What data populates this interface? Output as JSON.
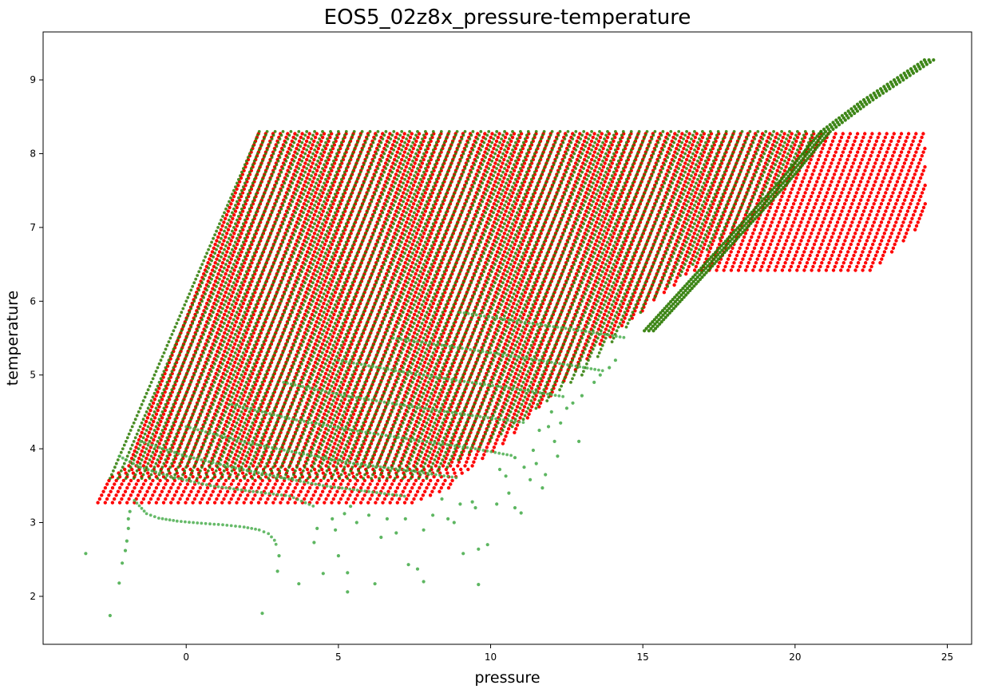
{
  "chart_data": {
    "type": "scatter",
    "title": "EOS5_02z8x_pressure-temperature",
    "xlabel": "pressure",
    "ylabel": "temperature",
    "xlim": [
      -4.7,
      25.8
    ],
    "ylim": [
      1.35,
      9.65
    ],
    "xticks": [
      0,
      5,
      10,
      15,
      20,
      25
    ],
    "yticks": [
      2,
      3,
      4,
      5,
      6,
      7,
      8,
      9
    ],
    "grid": false,
    "legend": "none",
    "series": [
      {
        "color": "#ff0000",
        "marker_size": 2.2,
        "grid_region": {
          "t_min": 3.27,
          "t_max": 8.3,
          "t_step": 0.05,
          "p_step": 0.24,
          "left_edge": [
            [
              3.27,
              -2.9
            ],
            [
              3.6,
              -2.5
            ],
            [
              3.75,
              -1.9
            ],
            [
              8.3,
              2.4
            ]
          ],
          "right_edge": [
            [
              3.27,
              7.6
            ],
            [
              3.42,
              8.5
            ],
            [
              3.75,
              9.4
            ],
            [
              4.05,
              10.4
            ],
            [
              5.4,
              13.6
            ],
            [
              6.4,
              16.6
            ],
            [
              6.4,
              22.5
            ],
            [
              7.1,
              24.3
            ],
            [
              8.3,
              24.3
            ]
          ]
        }
      },
      {
        "color": "#2a7a00",
        "marker_size": 1.9,
        "opacity": 0.85,
        "grid_region": {
          "t_min": 3.6,
          "t_max": 8.3,
          "t_step": 0.05,
          "p_step": 0.26,
          "left_edge": [
            [
              3.6,
              -2.5
            ],
            [
              8.3,
              2.4
            ]
          ],
          "right_edge": [
            [
              3.6,
              8.0
            ],
            [
              4.2,
              10.5
            ],
            [
              5.0,
              13.0
            ],
            [
              6.0,
              15.3
            ],
            [
              7.0,
              18.0
            ],
            [
              8.0,
              20.3
            ],
            [
              8.3,
              20.9
            ]
          ]
        },
        "diagonal_band": [
          [
            5.6,
            15.2
          ],
          [
            6.6,
            17.4
          ],
          [
            7.6,
            19.6
          ],
          [
            8.3,
            21.0
          ],
          [
            8.7,
            22.3
          ],
          [
            9.27,
            24.4
          ]
        ],
        "scattered": [
          [
            -3.3,
            2.58
          ],
          [
            -2.5,
            1.74
          ],
          [
            -2.2,
            2.18
          ],
          [
            -2.1,
            2.45
          ],
          [
            -2.0,
            2.62
          ],
          [
            -1.95,
            2.75
          ],
          [
            -1.9,
            2.92
          ],
          [
            -1.9,
            3.05
          ],
          [
            -1.85,
            3.15
          ],
          [
            2.5,
            1.77
          ],
          [
            3.0,
            2.34
          ],
          [
            3.05,
            2.55
          ],
          [
            3.7,
            2.17
          ],
          [
            4.2,
            2.73
          ],
          [
            4.3,
            2.92
          ],
          [
            4.5,
            2.31
          ],
          [
            4.8,
            3.05
          ],
          [
            4.9,
            2.9
          ],
          [
            5.0,
            2.55
          ],
          [
            5.2,
            3.12
          ],
          [
            5.3,
            2.32
          ],
          [
            5.3,
            2.06
          ],
          [
            5.4,
            3.22
          ],
          [
            5.6,
            3.0
          ],
          [
            6.0,
            3.1
          ],
          [
            6.2,
            2.17
          ],
          [
            6.4,
            2.8
          ],
          [
            6.6,
            3.05
          ],
          [
            6.9,
            2.86
          ],
          [
            7.2,
            3.05
          ],
          [
            7.3,
            2.43
          ],
          [
            7.6,
            2.37
          ],
          [
            7.8,
            2.2
          ],
          [
            7.8,
            2.9
          ],
          [
            8.1,
            3.1
          ],
          [
            8.4,
            3.32
          ],
          [
            8.6,
            3.05
          ],
          [
            8.8,
            3.0
          ],
          [
            9.0,
            3.25
          ],
          [
            9.1,
            2.58
          ],
          [
            9.4,
            3.28
          ],
          [
            9.5,
            3.2
          ],
          [
            9.6,
            2.16
          ],
          [
            9.6,
            2.64
          ],
          [
            9.9,
            2.7
          ],
          [
            10.2,
            3.25
          ],
          [
            10.6,
            3.4
          ],
          [
            10.8,
            3.2
          ],
          [
            11.0,
            3.13
          ],
          [
            11.3,
            3.58
          ],
          [
            11.5,
            3.8
          ],
          [
            11.7,
            3.47
          ],
          [
            11.8,
            3.65
          ],
          [
            12.1,
            4.1
          ],
          [
            10.3,
            3.72
          ],
          [
            10.5,
            3.63
          ],
          [
            10.8,
            3.88
          ],
          [
            11.1,
            3.75
          ],
          [
            11.4,
            3.98
          ],
          [
            11.6,
            4.25
          ],
          [
            11.9,
            4.3
          ],
          [
            12.3,
            4.35
          ],
          [
            12.5,
            4.55
          ],
          [
            12.7,
            4.62
          ],
          [
            13.0,
            4.72
          ],
          [
            13.4,
            4.9
          ],
          [
            13.6,
            5.0
          ],
          [
            13.9,
            5.1
          ],
          [
            14.1,
            5.2
          ],
          [
            12.2,
            3.9
          ],
          [
            12.9,
            4.1
          ],
          [
            12.0,
            4.5
          ]
        ],
        "curves": [
          [
            [
              -1.7,
              3.3
            ],
            [
              -1.3,
              3.12
            ],
            [
              -0.9,
              3.06
            ],
            [
              -0.3,
              3.02
            ],
            [
              0.5,
              2.99
            ],
            [
              1.2,
              2.97
            ],
            [
              1.9,
              2.94
            ],
            [
              2.4,
              2.9
            ],
            [
              2.7,
              2.85
            ],
            [
              2.9,
              2.76
            ],
            [
              3.0,
              2.65
            ]
          ],
          [
            [
              -2.2,
              3.9
            ],
            [
              -1.5,
              3.75
            ],
            [
              -0.5,
              3.62
            ],
            [
              0.8,
              3.5
            ],
            [
              2.2,
              3.42
            ],
            [
              3.4,
              3.36
            ],
            [
              4.3,
              3.2
            ]
          ],
          [
            [
              -1.5,
              4.1
            ],
            [
              0.0,
              3.9
            ],
            [
              1.5,
              3.75
            ],
            [
              3.0,
              3.62
            ],
            [
              4.5,
              3.5
            ],
            [
              6.0,
              3.42
            ],
            [
              7.3,
              3.35
            ]
          ],
          [
            [
              0.0,
              4.3
            ],
            [
              1.8,
              4.1
            ],
            [
              3.6,
              3.95
            ],
            [
              5.5,
              3.8
            ],
            [
              7.4,
              3.7
            ],
            [
              9.0,
              3.6
            ]
          ],
          [
            [
              1.5,
              4.6
            ],
            [
              3.5,
              4.4
            ],
            [
              5.5,
              4.25
            ],
            [
              7.5,
              4.12
            ],
            [
              9.5,
              4.0
            ],
            [
              10.8,
              3.9
            ]
          ],
          [
            [
              3.2,
              4.9
            ],
            [
              5.2,
              4.72
            ],
            [
              7.3,
              4.58
            ],
            [
              9.4,
              4.45
            ],
            [
              11.2,
              4.35
            ]
          ],
          [
            [
              5.0,
              5.2
            ],
            [
              7.0,
              5.05
            ],
            [
              9.0,
              4.92
            ],
            [
              11.0,
              4.8
            ],
            [
              12.5,
              4.7
            ]
          ],
          [
            [
              6.8,
              5.5
            ],
            [
              8.8,
              5.38
            ],
            [
              10.8,
              5.25
            ],
            [
              12.8,
              5.12
            ],
            [
              13.8,
              5.05
            ]
          ],
          [
            [
              9.0,
              5.85
            ],
            [
              11.0,
              5.72
            ],
            [
              13.0,
              5.6
            ],
            [
              14.5,
              5.5
            ]
          ]
        ]
      }
    ]
  }
}
